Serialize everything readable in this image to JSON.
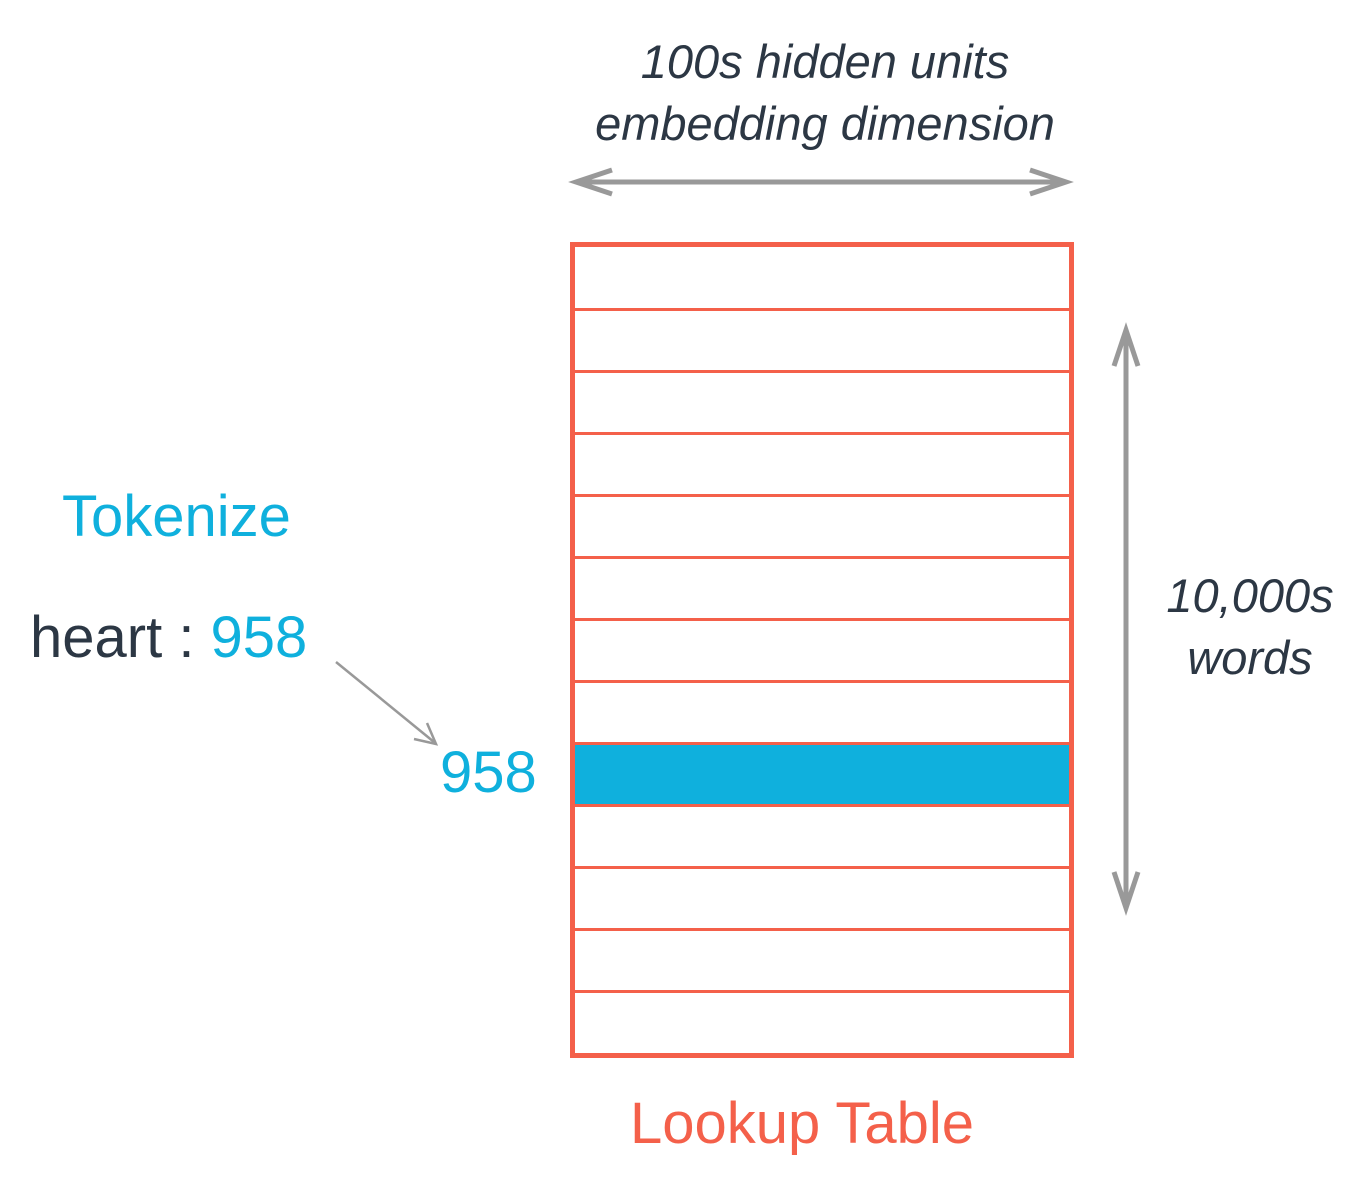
{
  "dimension_label": {
    "line1": "100s hidden units",
    "line2": "embedding dimension"
  },
  "vocab_label": {
    "line1": "10,000s",
    "line2": "words"
  },
  "tokenize": {
    "title": "Tokenize",
    "word": "heart",
    "separator": " : ",
    "token_id": "958"
  },
  "lookup_table": {
    "title": "Lookup Table",
    "row_count": 13,
    "highlighted_row": 9,
    "highlight_label": "958"
  },
  "colors": {
    "accent_blue": "#0fb0dd",
    "table_red": "#f4604a",
    "text_dark": "#2c3744",
    "arrow_gray": "#999999"
  },
  "icons": {
    "width_arrow": "double-arrow-horizontal",
    "height_arrow": "double-arrow-vertical",
    "token_pointer": "arrow-pointer"
  }
}
